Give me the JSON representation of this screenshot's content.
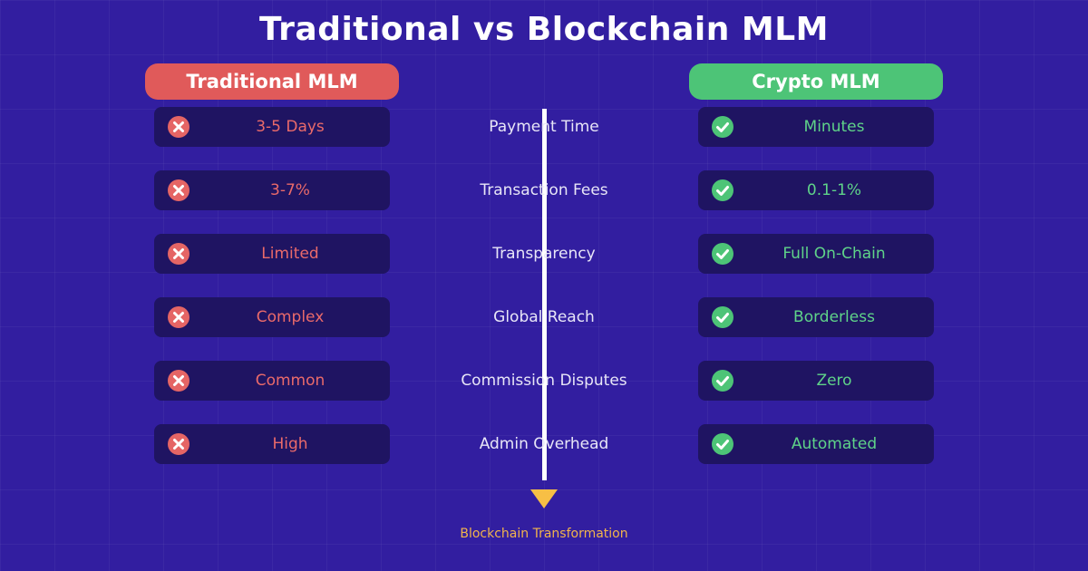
{
  "title": "Traditional vs Blockchain MLM",
  "left_header": "Traditional MLM",
  "right_header": "Crypto MLM",
  "rows": [
    {
      "metric": "Payment Time",
      "traditional": "3-5 Days",
      "crypto": "Minutes"
    },
    {
      "metric": "Transaction Fees",
      "traditional": "3-7%",
      "crypto": "0.1-1%"
    },
    {
      "metric": "Transparency",
      "traditional": "Limited",
      "crypto": "Full On-Chain"
    },
    {
      "metric": "Global Reach",
      "traditional": "Complex",
      "crypto": "Borderless"
    },
    {
      "metric": "Commission Disputes",
      "traditional": "Common",
      "crypto": "Zero"
    },
    {
      "metric": "Admin Overhead",
      "traditional": "High",
      "crypto": "Automated"
    }
  ],
  "caption": "Blockchain Transformation",
  "icons": {
    "traditional": "x-circle-icon",
    "crypto": "check-circle-icon"
  },
  "colors": {
    "background": "#321ea0",
    "traditional": "#e05a5a",
    "crypto": "#4dc477",
    "card": "#1f1462",
    "arrow": "#f7bf45"
  }
}
